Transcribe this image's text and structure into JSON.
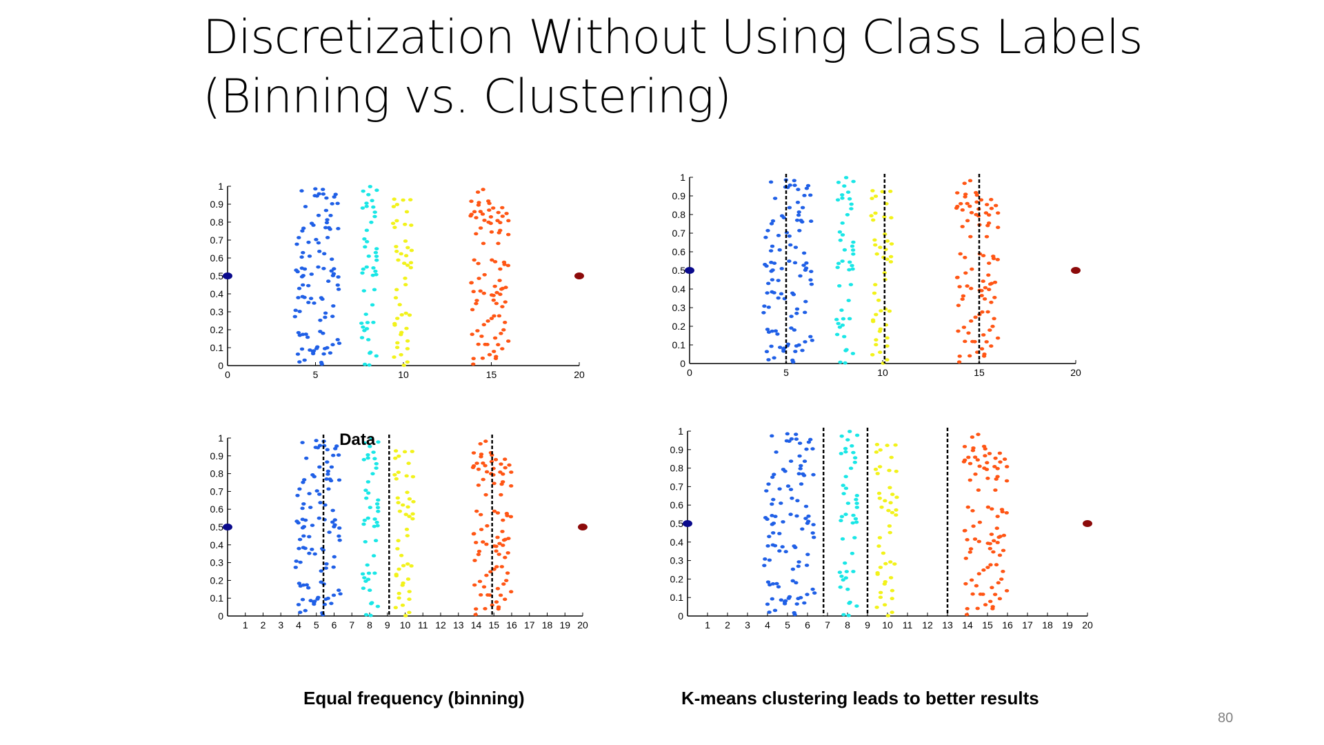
{
  "slide": {
    "title_line1": "Discretization Without Using Class Labels",
    "title_line2": "(Binning vs. Clustering)",
    "page_number": "80",
    "colors": {
      "cluster1": "#1f5fe6",
      "cluster2": "#19e6e6",
      "cluster3": "#f2f21a",
      "cluster4": "#ff5514",
      "left_marker": "#0a0a8c",
      "right_marker": "#8c0a0a",
      "boundary": "#000000"
    }
  },
  "captions": {
    "left": "Equal frequency (binning)",
    "right": "K-means clustering leads to better results"
  },
  "chart_data": [
    {
      "id": "top-left",
      "type": "scatter",
      "title": "",
      "xlim": [
        0,
        20
      ],
      "ylim": [
        0,
        1
      ],
      "xticks": [
        "0",
        "5",
        "10",
        "15",
        "20"
      ],
      "yticks": [
        "0",
        "0.1",
        "0.2",
        "0.3",
        "0.4",
        "0.5",
        "0.6",
        "0.7",
        "0.8",
        "0.9",
        "1"
      ],
      "boundaries": [],
      "annotation": "",
      "markers": [
        {
          "x": 0,
          "y": 0.5,
          "color": "left"
        },
        {
          "x": 20,
          "y": 0.5,
          "color": "right"
        }
      ],
      "clusters": [
        {
          "color": "cluster1",
          "x_range": [
            3.8,
            6.4
          ],
          "count": 100
        },
        {
          "color": "cluster2",
          "x_range": [
            7.6,
            8.6
          ],
          "count": 45
        },
        {
          "color": "cluster3",
          "x_range": [
            9.4,
            10.5
          ],
          "count": 45
        },
        {
          "color": "cluster4",
          "x_range": [
            13.8,
            16.0
          ],
          "count": 90
        }
      ]
    },
    {
      "id": "top-right",
      "type": "scatter",
      "title": "",
      "xlim": [
        0,
        20
      ],
      "ylim": [
        0,
        1
      ],
      "xticks": [
        "0",
        "5",
        "10",
        "15",
        "20"
      ],
      "yticks": [
        "0",
        "0.1",
        "0.2",
        "0.3",
        "0.4",
        "0.5",
        "0.6",
        "0.7",
        "0.8",
        "0.9",
        "1"
      ],
      "boundaries": [
        5.0,
        10.1,
        15.0
      ],
      "annotation": "",
      "markers": [
        {
          "x": 0,
          "y": 0.5,
          "color": "left"
        },
        {
          "x": 20,
          "y": 0.5,
          "color": "right"
        }
      ],
      "clusters": [
        {
          "color": "cluster1",
          "x_range": [
            3.8,
            6.4
          ],
          "count": 100
        },
        {
          "color": "cluster2",
          "x_range": [
            7.6,
            8.6
          ],
          "count": 45
        },
        {
          "color": "cluster3",
          "x_range": [
            9.4,
            10.5
          ],
          "count": 45
        },
        {
          "color": "cluster4",
          "x_range": [
            13.8,
            16.0
          ],
          "count": 90
        }
      ]
    },
    {
      "id": "bottom-left",
      "type": "scatter",
      "title": "",
      "xlim": [
        0,
        20
      ],
      "ylim": [
        0,
        1
      ],
      "xticks": [
        "1",
        "2",
        "3",
        "4",
        "5",
        "6",
        "7",
        "8",
        "9",
        "10",
        "11",
        "12",
        "13",
        "14",
        "15",
        "16",
        "17",
        "18",
        "19",
        "20"
      ],
      "yticks": [
        "0",
        "0.1",
        "0.2",
        "0.3",
        "0.4",
        "0.5",
        "0.6",
        "0.7",
        "0.8",
        "0.9",
        "1"
      ],
      "boundaries": [
        5.4,
        9.1,
        14.9
      ],
      "annotation": "Data",
      "markers": [
        {
          "x": 0,
          "y": 0.5,
          "color": "left"
        },
        {
          "x": 20,
          "y": 0.5,
          "color": "right"
        }
      ],
      "clusters": [
        {
          "color": "cluster1",
          "x_range": [
            3.8,
            6.4
          ],
          "count": 100
        },
        {
          "color": "cluster2",
          "x_range": [
            7.6,
            8.6
          ],
          "count": 45
        },
        {
          "color": "cluster3",
          "x_range": [
            9.4,
            10.5
          ],
          "count": 45
        },
        {
          "color": "cluster4",
          "x_range": [
            13.8,
            16.0
          ],
          "count": 90
        }
      ]
    },
    {
      "id": "bottom-right",
      "type": "scatter",
      "title": "",
      "xlim": [
        0,
        20
      ],
      "ylim": [
        0,
        1
      ],
      "xticks": [
        "1",
        "2",
        "3",
        "4",
        "5",
        "6",
        "7",
        "8",
        "9",
        "10",
        "11",
        "12",
        "13",
        "14",
        "15",
        "16",
        "17",
        "18",
        "19",
        "20"
      ],
      "yticks": [
        "0",
        "0.1",
        "0.2",
        "0.3",
        "0.4",
        "0.5",
        "0.6",
        "0.7",
        "0.8",
        "0.9",
        "1"
      ],
      "boundaries": [
        6.8,
        9.0,
        13.0
      ],
      "annotation": "",
      "markers": [
        {
          "x": 0,
          "y": 0.5,
          "color": "left"
        },
        {
          "x": 20,
          "y": 0.5,
          "color": "right"
        }
      ],
      "clusters": [
        {
          "color": "cluster1",
          "x_range": [
            3.8,
            6.4
          ],
          "count": 100
        },
        {
          "color": "cluster2",
          "x_range": [
            7.6,
            8.6
          ],
          "count": 45
        },
        {
          "color": "cluster3",
          "x_range": [
            9.4,
            10.5
          ],
          "count": 45
        },
        {
          "color": "cluster4",
          "x_range": [
            13.8,
            16.0
          ],
          "count": 90
        }
      ]
    }
  ]
}
